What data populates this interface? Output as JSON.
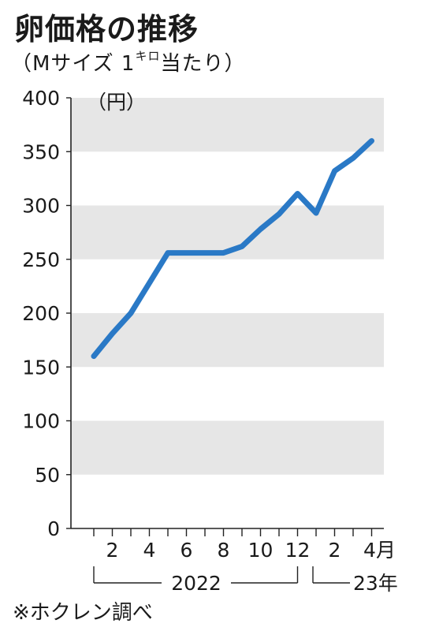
{
  "title": "卵価格の推移",
  "subtitle": {
    "open": "（Mサイズ 1",
    "unit_kilo": "キロ",
    "close": "当たり）"
  },
  "unit_label": "（円）",
  "source": "※ホクレン調べ",
  "chart_data": {
    "type": "line",
    "title": "卵価格の推移",
    "ylabel": "（円）",
    "ylim": [
      0,
      400
    ],
    "yticks": [
      0,
      50,
      100,
      150,
      200,
      250,
      300,
      350,
      400
    ],
    "grid": "alternating horizontal bands",
    "x_tick_labels": [
      {
        "i": 1,
        "label": "2"
      },
      {
        "i": 3,
        "label": "4"
      },
      {
        "i": 5,
        "label": "6"
      },
      {
        "i": 7,
        "label": "8"
      },
      {
        "i": 9,
        "label": "10"
      },
      {
        "i": 11,
        "label": "12"
      },
      {
        "i": 13,
        "label": "2"
      },
      {
        "i": 15,
        "label": "4月"
      }
    ],
    "year_labels": [
      {
        "label": "2022",
        "from": 0,
        "to": 11
      },
      {
        "label": "23年",
        "from": 12,
        "to": 15
      }
    ],
    "series": [
      {
        "x": [
          "2022-01",
          "2022-02",
          "2022-03",
          "2022-04",
          "2022-05",
          "2022-06",
          "2022-07",
          "2022-08",
          "2022-09",
          "2022-10",
          "2022-11",
          "2022-12",
          "2023-01",
          "2023-02",
          "2023-03",
          "2023-04"
        ],
        "values": [
          160,
          181,
          200,
          228,
          256,
          256,
          256,
          256,
          262,
          278,
          292,
          311,
          293,
          332,
          344,
          360
        ],
        "color": "#2a79c6"
      }
    ]
  }
}
